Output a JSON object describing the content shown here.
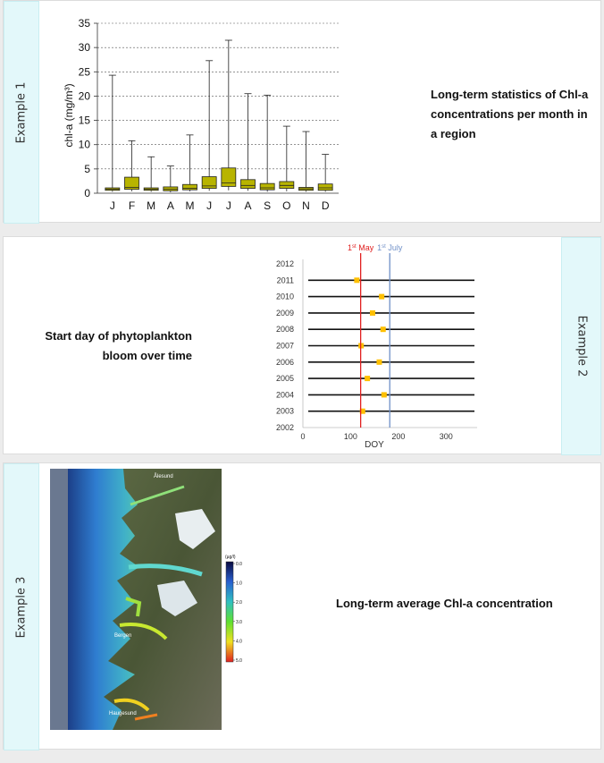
{
  "examples": [
    {
      "tab_label": "Example 1",
      "description": "Long-term statistics of Chl-a concentrations per month in a region"
    },
    {
      "tab_label": "Example 2",
      "description": "Start day of phytoplankton bloom over time"
    },
    {
      "tab_label": "Example 3",
      "description": "Long-term average Chl-a concentration"
    }
  ],
  "chart_data": [
    {
      "type": "box",
      "ylabel": "chl-a (mg/m³)",
      "ylim": [
        0,
        35
      ],
      "yticks": [
        0,
        5,
        10,
        15,
        20,
        25,
        30,
        35
      ],
      "grid": "horizontal dashed",
      "box_color": "#b8b400",
      "categories": [
        "J",
        "F",
        "M",
        "A",
        "M",
        "J",
        "J",
        "A",
        "S",
        "O",
        "N",
        "D"
      ],
      "boxes": [
        {
          "min": 0.3,
          "q1": 0.6,
          "median": 0.8,
          "q3": 1.1,
          "max": 24.3
        },
        {
          "min": 0.4,
          "q1": 0.8,
          "median": 1.2,
          "q3": 3.3,
          "max": 10.8
        },
        {
          "min": 0.3,
          "q1": 0.6,
          "median": 0.8,
          "q3": 1.1,
          "max": 7.5
        },
        {
          "min": 0.2,
          "q1": 0.5,
          "median": 0.8,
          "q3": 1.3,
          "max": 5.6
        },
        {
          "min": 0.4,
          "q1": 0.7,
          "median": 1.0,
          "q3": 1.8,
          "max": 12.0
        },
        {
          "min": 0.5,
          "q1": 1.0,
          "median": 1.5,
          "q3": 3.4,
          "max": 27.3
        },
        {
          "min": 0.6,
          "q1": 1.4,
          "median": 2.1,
          "q3": 5.2,
          "max": 31.5
        },
        {
          "min": 0.5,
          "q1": 1.0,
          "median": 1.6,
          "q3": 2.8,
          "max": 20.5
        },
        {
          "min": 0.3,
          "q1": 0.7,
          "median": 1.1,
          "q3": 2.0,
          "max": 20.2
        },
        {
          "min": 0.4,
          "q1": 1.0,
          "median": 1.6,
          "q3": 2.4,
          "max": 13.8
        },
        {
          "min": 0.3,
          "q1": 0.6,
          "median": 0.9,
          "q3": 1.2,
          "max": 12.7
        },
        {
          "min": 0.3,
          "q1": 0.6,
          "median": 1.1,
          "q3": 1.9,
          "max": 8.0
        }
      ]
    },
    {
      "type": "scatter",
      "xlabel": "DOY",
      "xlim": [
        0,
        365
      ],
      "xticks": [
        0,
        100,
        200,
        300
      ],
      "ylim": [
        2002,
        2012
      ],
      "yticks": [
        2002,
        2003,
        2004,
        2005,
        2006,
        2007,
        2008,
        2009,
        2010,
        2011,
        2012
      ],
      "marker_color": "#ffc000",
      "line_color": "#111111",
      "annotations": [
        {
          "label_base": "1",
          "label_sup": "st",
          "label_rest": " May",
          "x": 121,
          "color": "#e02020"
        },
        {
          "label_base": "1",
          "label_sup": "st",
          "label_rest": " July",
          "x": 182,
          "color": "#7090c8"
        }
      ],
      "points": [
        {
          "year": 2003,
          "doy": 125
        },
        {
          "year": 2004,
          "doy": 170
        },
        {
          "year": 2005,
          "doy": 135
        },
        {
          "year": 2006,
          "doy": 160
        },
        {
          "year": 2007,
          "doy": 122
        },
        {
          "year": 2008,
          "doy": 168
        },
        {
          "year": 2009,
          "doy": 146
        },
        {
          "year": 2010,
          "doy": 165
        },
        {
          "year": 2011,
          "doy": 113
        }
      ]
    },
    {
      "type": "heatmap",
      "colorbar_title": "(µg/l)",
      "colorbar_ticks": [
        "0.0",
        "1.0",
        "2.0",
        "3.0",
        "4.0",
        "5.0"
      ],
      "place_labels": [
        "Ålesund",
        "Bergen",
        "Haugesund"
      ]
    }
  ]
}
